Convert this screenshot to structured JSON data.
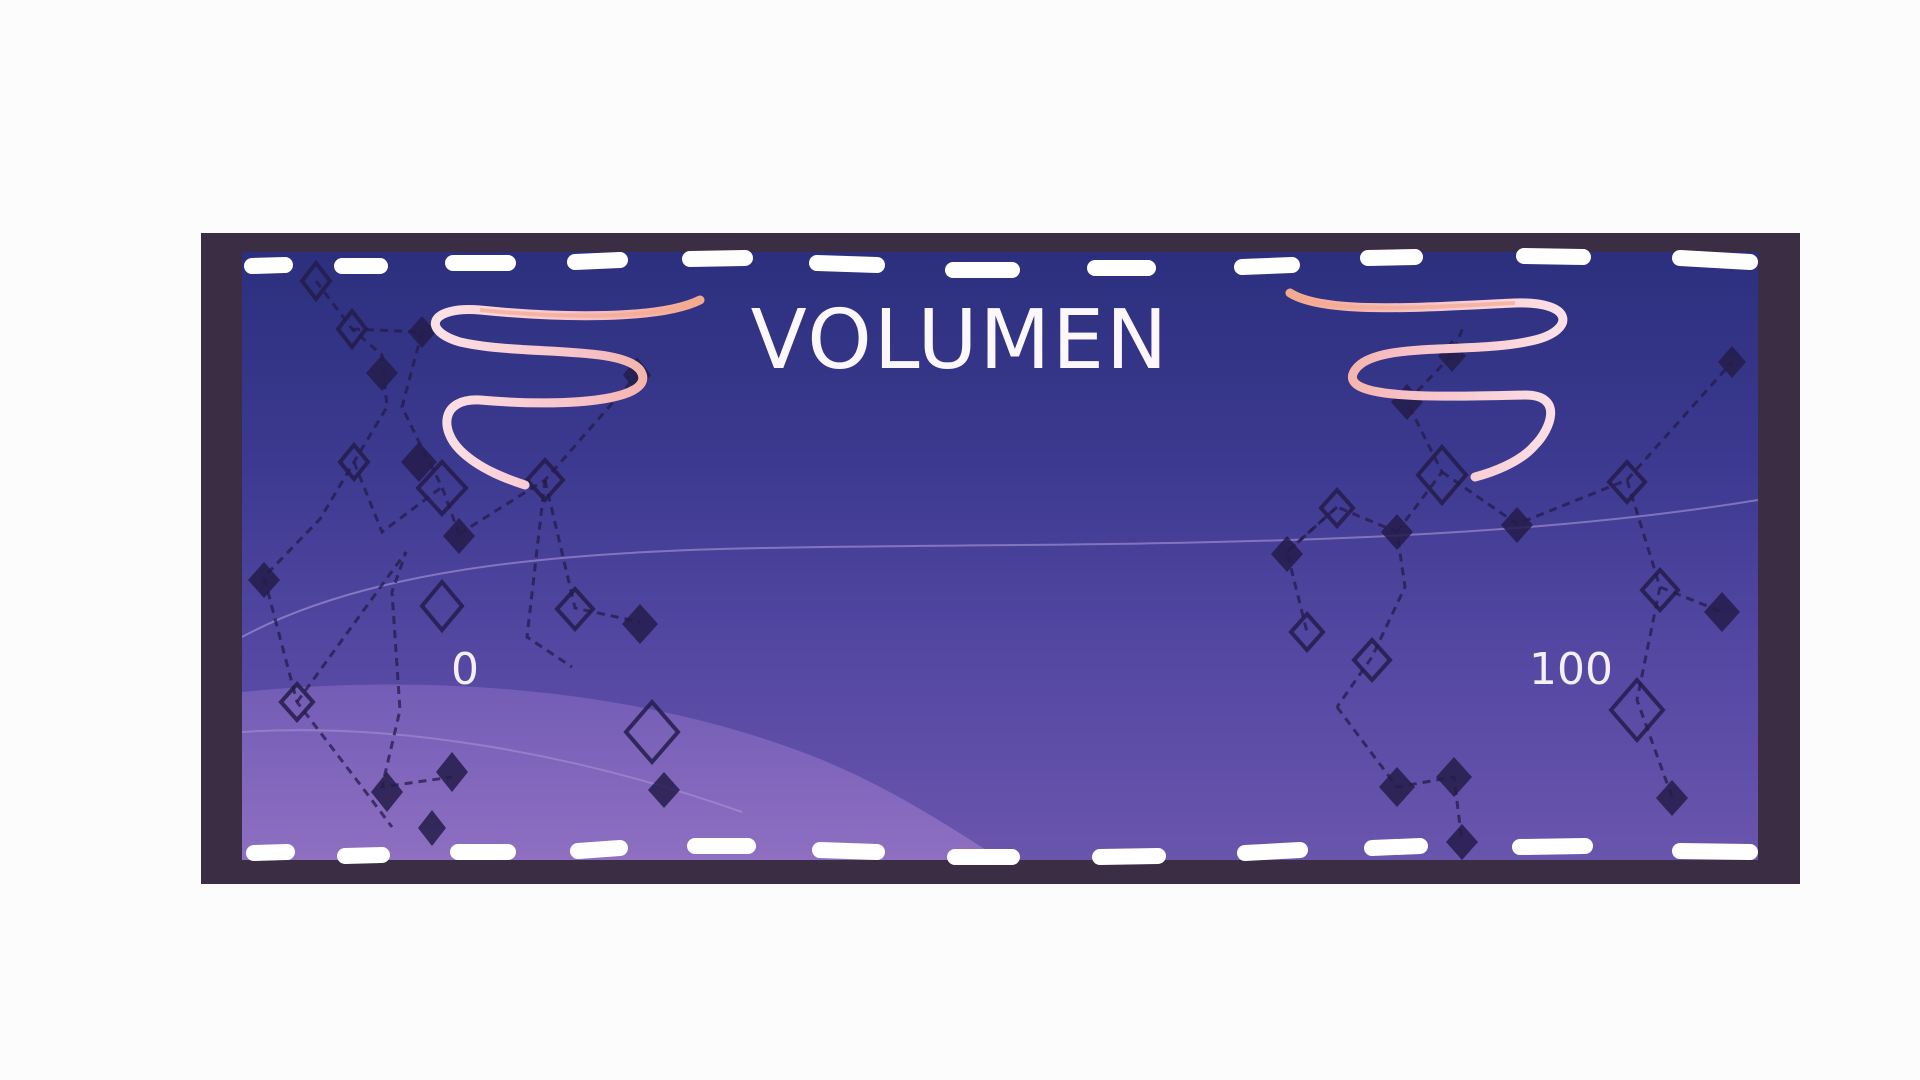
{
  "settings_panel": {
    "title": "VOLUMEN",
    "slider": {
      "min_label": "0",
      "max_label": "100"
    }
  },
  "colors": {
    "frame": "#3b2d44",
    "panel_top": "#2c2f7e",
    "panel_bottom": "#6a55ad",
    "stitch": "#ffffff",
    "ribbon_light": "#f9d8df",
    "ribbon_dark": "#f3a98e",
    "text": "#fbf7fa"
  },
  "icons": {
    "left_ribbon": "ribbon-swirl-icon",
    "right_ribbon": "ribbon-swirl-icon",
    "background": "diamond-network-pattern"
  }
}
